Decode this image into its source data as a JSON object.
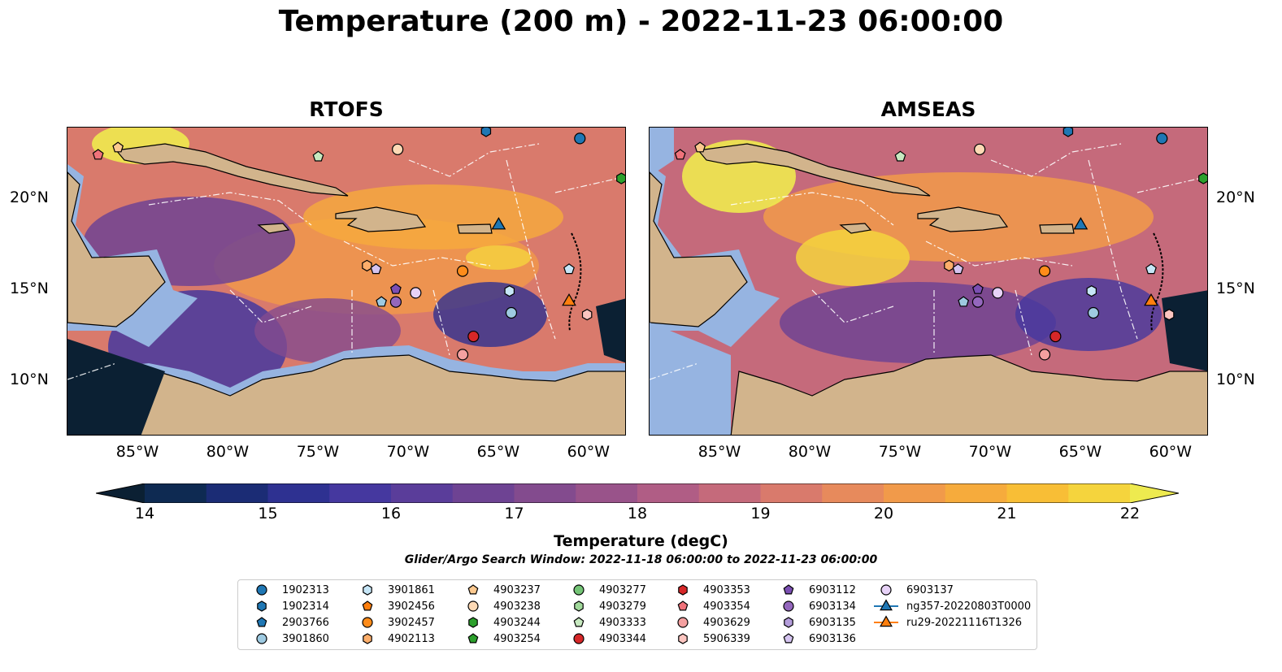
{
  "title": "Temperature (200 m) - 2022-11-23 06:00:00",
  "panels": [
    {
      "title": "RTOFS"
    },
    {
      "title": "AMSEAS"
    }
  ],
  "axes": {
    "lon_ticks": [
      "85°W",
      "80°W",
      "75°W",
      "70°W",
      "65°W",
      "60°W"
    ],
    "lat_ticks": [
      "20°N",
      "15°N",
      "10°N"
    ],
    "lon_range": [
      -89,
      -58
    ],
    "lat_range": [
      7,
      24
    ]
  },
  "colorbar": {
    "label": "Temperature (degC)",
    "ticks": [
      "14",
      "15",
      "16",
      "17",
      "18",
      "19",
      "20",
      "21",
      "22"
    ],
    "range": [
      14,
      22
    ],
    "extend": "both",
    "colors": [
      "#0b2033",
      "#0e2a52",
      "#1b2c75",
      "#2e3191",
      "#45389f",
      "#5a3d9a",
      "#6e4393",
      "#834b8e",
      "#99538a",
      "#b05d85",
      "#c56a7b",
      "#d97a6c",
      "#e78a5c",
      "#f19a4a",
      "#f6ab3c",
      "#f8be36",
      "#f5d43d",
      "#eeea4f"
    ]
  },
  "window_text": "Glider/Argo Search Window: 2022-11-18 06:00:00 to 2022-11-23 06:00:00",
  "colors": {
    "land": "#d2b48c",
    "shelf": "#96b4e1",
    "deep_cold": "#0b2033"
  },
  "legend": [
    {
      "label": "1902313",
      "marker": "circle",
      "color": "#1f77b4"
    },
    {
      "label": "1902314",
      "marker": "hexagon",
      "color": "#1f77b4"
    },
    {
      "label": "2903766",
      "marker": "pentagon",
      "color": "#1f77b4"
    },
    {
      "label": "3901860",
      "marker": "circle",
      "color": "#9ecae1"
    },
    {
      "label": "3901861",
      "marker": "hexagon",
      "color": "#c6e6f7"
    },
    {
      "label": "3902456",
      "marker": "pentagon",
      "color": "#ff7f0e"
    },
    {
      "label": "3902457",
      "marker": "circle",
      "color": "#ff8c1a"
    },
    {
      "label": "4902113",
      "marker": "hexagon",
      "color": "#fdae6b"
    },
    {
      "label": "4903237",
      "marker": "pentagon",
      "color": "#fdc98f"
    },
    {
      "label": "4903238",
      "marker": "circle",
      "color": "#fdd9b5"
    },
    {
      "label": "4903244",
      "marker": "hexagon",
      "color": "#2ca02c"
    },
    {
      "label": "4903254",
      "marker": "pentagon",
      "color": "#2ca02c"
    },
    {
      "label": "4903277",
      "marker": "circle",
      "color": "#74c476"
    },
    {
      "label": "4903279",
      "marker": "hexagon",
      "color": "#a1d99b"
    },
    {
      "label": "4903333",
      "marker": "pentagon",
      "color": "#c7e9c0"
    },
    {
      "label": "4903344",
      "marker": "circle",
      "color": "#d62728"
    },
    {
      "label": "4903353",
      "marker": "hexagon",
      "color": "#d62728"
    },
    {
      "label": "4903354",
      "marker": "pentagon",
      "color": "#f0727a"
    },
    {
      "label": "4903629",
      "marker": "circle",
      "color": "#f4a0a0"
    },
    {
      "label": "5906339",
      "marker": "hexagon",
      "color": "#fcc5c0"
    },
    {
      "label": "6903112",
      "marker": "pentagon",
      "color": "#7b4fb3"
    },
    {
      "label": "6903134",
      "marker": "circle",
      "color": "#9467bd"
    },
    {
      "label": "6903135",
      "marker": "hexagon",
      "color": "#b49ddb"
    },
    {
      "label": "6903136",
      "marker": "pentagon",
      "color": "#d5c4f0"
    },
    {
      "label": "6903137",
      "marker": "circle",
      "color": "#e7d2f7"
    },
    {
      "label": "ng357-20220803T0000",
      "marker": "triangle-line",
      "color": "#1f77b4"
    },
    {
      "label": "ru29-20221116T1326",
      "marker": "triangle-line",
      "color": "#ff7f0e"
    }
  ],
  "stations": [
    {
      "lon": -65.8,
      "lat": 23.8,
      "marker": "hexagon",
      "color": "#1f77b4"
    },
    {
      "lon": -60.6,
      "lat": 23.4,
      "marker": "circle",
      "color": "#1f77b4"
    },
    {
      "lon": -58.3,
      "lat": 21.2,
      "marker": "hexagon",
      "color": "#2ca02c"
    },
    {
      "lon": -87.3,
      "lat": 22.5,
      "marker": "pentagon",
      "color": "#f0727a"
    },
    {
      "lon": -86.2,
      "lat": 22.9,
      "marker": "pentagon",
      "color": "#fdc98f"
    },
    {
      "lon": -75.1,
      "lat": 22.4,
      "marker": "pentagon",
      "color": "#c7e9c0"
    },
    {
      "lon": -70.7,
      "lat": 22.8,
      "marker": "circle",
      "color": "#fdd9b5"
    },
    {
      "lon": -65.1,
      "lat": 18.7,
      "marker": "triangle",
      "color": "#1f77b4"
    },
    {
      "lon": -72.4,
      "lat": 16.4,
      "marker": "hexagon",
      "color": "#fdae6b"
    },
    {
      "lon": -71.9,
      "lat": 16.2,
      "marker": "pentagon",
      "color": "#d5c4f0"
    },
    {
      "lon": -67.1,
      "lat": 16.1,
      "marker": "circle",
      "color": "#ff8c1a"
    },
    {
      "lon": -61.2,
      "lat": 16.2,
      "marker": "pentagon",
      "color": "#c6e6f7"
    },
    {
      "lon": -70.8,
      "lat": 15.1,
      "marker": "pentagon",
      "color": "#7b4fb3"
    },
    {
      "lon": -69.7,
      "lat": 14.9,
      "marker": "circle",
      "color": "#e7d2f7"
    },
    {
      "lon": -64.5,
      "lat": 15.0,
      "marker": "hexagon",
      "color": "#c6e6f7"
    },
    {
      "lon": -71.6,
      "lat": 14.4,
      "marker": "pentagon",
      "color": "#9ecae1"
    },
    {
      "lon": -70.8,
      "lat": 14.4,
      "marker": "circle",
      "color": "#9467bd"
    },
    {
      "lon": -61.2,
      "lat": 14.5,
      "marker": "triangle",
      "color": "#ff7f0e"
    },
    {
      "lon": -64.4,
      "lat": 13.8,
      "marker": "circle",
      "color": "#9ecae1"
    },
    {
      "lon": -60.2,
      "lat": 13.7,
      "marker": "hexagon",
      "color": "#fcc5c0"
    },
    {
      "lon": -66.5,
      "lat": 12.5,
      "marker": "circle",
      "color": "#d62728"
    },
    {
      "lon": -67.1,
      "lat": 11.5,
      "marker": "circle",
      "color": "#f4a0a0"
    }
  ]
}
